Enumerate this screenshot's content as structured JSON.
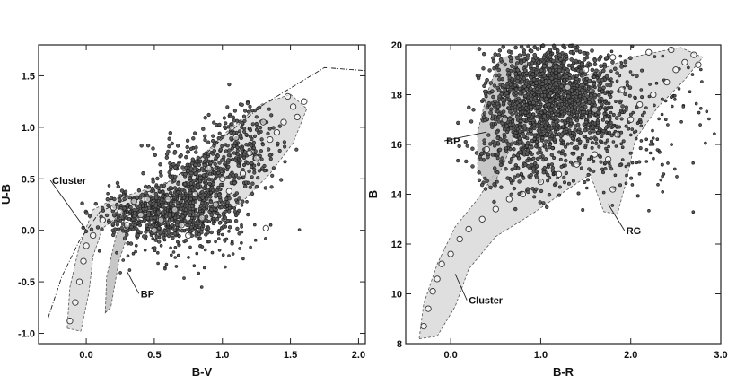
{
  "chart_data": [
    {
      "type": "scatter",
      "title": "",
      "xlabel": "B-V",
      "ylabel": "U-B",
      "xlim": [
        -0.35,
        2.05
      ],
      "ylim": [
        1.8,
        -1.1
      ],
      "y_inverted": true,
      "xticks": [
        "0.0",
        "0.5",
        "1.0",
        "1.5",
        "2.0"
      ],
      "yticks": [
        "-1.0",
        "-0.5",
        "0.0",
        "0.5",
        "1.0",
        "1.5"
      ],
      "grid": false,
      "annotations": [
        {
          "text": "BP",
          "x": 0.4,
          "y": -0.65
        },
        {
          "text": "Cluster",
          "x": -0.25,
          "y": 0.45
        }
      ],
      "regions": [
        {
          "name": "Cluster",
          "points": [
            [
              -0.14,
              -0.95
            ],
            [
              -0.04,
              -0.98
            ],
            [
              0.02,
              -0.6
            ],
            [
              0.05,
              -0.25
            ],
            [
              0.12,
              0.02
            ],
            [
              0.25,
              0.15
            ],
            [
              0.45,
              0.12
            ],
            [
              0.7,
              0.08
            ],
            [
              0.95,
              0.1
            ],
            [
              1.15,
              0.28
            ],
            [
              1.35,
              0.55
            ],
            [
              1.52,
              0.85
            ],
            [
              1.62,
              1.18
            ],
            [
              1.5,
              1.32
            ],
            [
              1.28,
              1.22
            ],
            [
              1.05,
              0.98
            ],
            [
              0.85,
              0.72
            ],
            [
              0.62,
              0.48
            ],
            [
              0.4,
              0.38
            ],
            [
              0.2,
              0.3
            ],
            [
              0.05,
              0.2
            ],
            [
              -0.05,
              -0.15
            ],
            [
              -0.12,
              -0.55
            ]
          ]
        },
        {
          "name": "BP",
          "points": [
            [
              0.14,
              -0.8
            ],
            [
              0.18,
              -0.75
            ],
            [
              0.24,
              -0.3
            ],
            [
              0.32,
              0.02
            ],
            [
              0.28,
              0.1
            ],
            [
              0.22,
              -0.05
            ],
            [
              0.15,
              -0.45
            ]
          ]
        }
      ],
      "envelope": [
        [
          -0.28,
          -0.85
        ],
        [
          -0.18,
          -0.45
        ],
        [
          -0.05,
          -0.1
        ],
        [
          0.1,
          0.18
        ],
        [
          0.3,
          0.3
        ],
        [
          0.55,
          0.42
        ],
        [
          0.8,
          0.65
        ],
        [
          1.05,
          0.95
        ],
        [
          1.3,
          1.22
        ],
        [
          1.55,
          1.42
        ],
        [
          1.75,
          1.58
        ],
        [
          1.95,
          1.56
        ],
        [
          2.05,
          1.55
        ]
      ],
      "series": [
        {
          "name": "",
          "points": [
            [
              -0.12,
              -0.88
            ],
            [
              -0.08,
              -0.7
            ],
            [
              -0.05,
              -0.5
            ],
            [
              -0.02,
              -0.3
            ],
            [
              0.0,
              -0.15
            ],
            [
              0.05,
              -0.05
            ],
            [
              0.12,
              0.1
            ],
            [
              0.25,
              0.18
            ],
            [
              0.4,
              0.15
            ],
            [
              0.55,
              0.1
            ],
            [
              0.7,
              0.05
            ],
            [
              0.85,
              0.12
            ],
            [
              0.95,
              0.25
            ],
            [
              1.05,
              0.38
            ],
            [
              1.15,
              0.55
            ],
            [
              1.25,
              0.7
            ],
            [
              1.35,
              0.88
            ],
            [
              1.45,
              1.05
            ],
            [
              1.52,
              1.2
            ],
            [
              0.3,
              0.05
            ],
            [
              0.5,
              0.0
            ],
            [
              0.65,
              0.2
            ],
            [
              0.8,
              0.35
            ],
            [
              1.0,
              0.5
            ],
            [
              1.2,
              0.75
            ],
            [
              1.3,
              1.05
            ],
            [
              1.1,
              0.9
            ],
            [
              0.9,
              0.6
            ],
            [
              0.6,
              0.3
            ],
            [
              0.45,
              0.3
            ],
            [
              1.4,
              0.95
            ],
            [
              1.55,
              1.1
            ],
            [
              0.75,
              -0.05
            ],
            [
              1.32,
              0.02
            ],
            [
              0.2,
              0.22
            ],
            [
              0.35,
              0.28
            ],
            [
              1.6,
              1.25
            ],
            [
              1.48,
              1.3
            ]
          ]
        }
      ]
    },
    {
      "type": "scatter",
      "title": "",
      "xlabel": "B-R",
      "ylabel": "B",
      "xlim": [
        -0.5,
        3.0
      ],
      "ylim": [
        20,
        8
      ],
      "y_inverted": true,
      "xticks": [
        "0.0",
        "1.0",
        "2.0",
        "3.0"
      ],
      "yticks": [
        "8",
        "10",
        "12",
        "14",
        "16",
        "18",
        "20"
      ],
      "grid": false,
      "annotations": [
        {
          "text": "Cluster",
          "x": 0.2,
          "y": 9.6
        },
        {
          "text": "RG",
          "x": 1.95,
          "y": 12.4
        },
        {
          "text": "BP",
          "x": -0.05,
          "y": 16.0
        }
      ],
      "regions": [
        {
          "name": "Cluster",
          "points": [
            [
              -0.35,
              8.2
            ],
            [
              -0.15,
              8.3
            ],
            [
              0.05,
              9.5
            ],
            [
              0.2,
              11.0
            ],
            [
              0.5,
              12.3
            ],
            [
              0.9,
              13.2
            ],
            [
              1.3,
              14.2
            ],
            [
              1.55,
              14.8
            ],
            [
              1.7,
              13.3
            ],
            [
              1.85,
              13.2
            ],
            [
              1.95,
              14.5
            ],
            [
              2.05,
              16.2
            ],
            [
              2.3,
              17.5
            ],
            [
              2.6,
              18.6
            ],
            [
              2.8,
              19.5
            ],
            [
              2.55,
              19.9
            ],
            [
              2.0,
              19.5
            ],
            [
              1.4,
              18.6
            ],
            [
              1.0,
              17.6
            ],
            [
              0.65,
              16.3
            ],
            [
              0.5,
              14.9
            ],
            [
              0.3,
              13.8
            ],
            [
              0.05,
              12.7
            ],
            [
              -0.15,
              11.2
            ],
            [
              -0.3,
              9.6
            ]
          ]
        },
        {
          "name": "BP",
          "points": [
            [
              0.3,
              15.0
            ],
            [
              0.45,
              14.2
            ],
            [
              0.6,
              15.3
            ],
            [
              0.75,
              16.8
            ],
            [
              0.85,
              18.2
            ],
            [
              0.85,
              19.6
            ],
            [
              0.55,
              19.5
            ],
            [
              0.4,
              18.0
            ],
            [
              0.3,
              16.5
            ]
          ]
        }
      ],
      "series": [
        {
          "name": "",
          "points": [
            [
              -0.3,
              8.7
            ],
            [
              -0.25,
              9.4
            ],
            [
              -0.2,
              10.1
            ],
            [
              -0.15,
              10.6
            ],
            [
              -0.1,
              11.2
            ],
            [
              0.0,
              11.6
            ],
            [
              0.1,
              12.2
            ],
            [
              0.2,
              12.6
            ],
            [
              0.35,
              13.0
            ],
            [
              0.5,
              13.4
            ],
            [
              0.65,
              13.8
            ],
            [
              0.8,
              14.0
            ],
            [
              1.0,
              14.5
            ],
            [
              1.2,
              14.8
            ],
            [
              1.4,
              15.2
            ],
            [
              1.6,
              15.6
            ],
            [
              1.75,
              15.4
            ],
            [
              1.8,
              14.2
            ],
            [
              1.85,
              16.4
            ],
            [
              2.0,
              17.0
            ],
            [
              2.1,
              17.6
            ],
            [
              2.25,
              18.0
            ],
            [
              2.4,
              18.5
            ],
            [
              2.5,
              19.0
            ],
            [
              2.6,
              19.3
            ],
            [
              2.7,
              19.6
            ],
            [
              1.9,
              18.2
            ],
            [
              1.6,
              17.4
            ],
            [
              1.3,
              18.3
            ],
            [
              1.1,
              19.2
            ],
            [
              1.5,
              19.0
            ],
            [
              1.8,
              19.5
            ],
            [
              2.2,
              19.7
            ],
            [
              0.6,
              17.0
            ],
            [
              0.4,
              15.8
            ],
            [
              2.75,
              19.2
            ],
            [
              2.45,
              19.8
            ],
            [
              1.0,
              16.0
            ]
          ]
        }
      ]
    }
  ]
}
